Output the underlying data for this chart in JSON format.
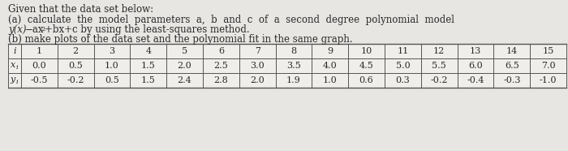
{
  "title_line1": "Given that the data set below:",
  "part_a_text": "(a)  calculate  the  model  parameters  a,  b  and  c  of  a  second  degree  polynomial  model",
  "part_a2_prefix": "y(x)=ax",
  "part_a2_suffix": "+bx+c by using the least-squares method.",
  "part_b": "(b) make plots of the data set and the polynomial fit in the same graph.",
  "row_i": [
    1,
    2,
    3,
    4,
    5,
    6,
    7,
    8,
    9,
    10,
    11,
    12,
    13,
    14,
    15
  ],
  "row_xi": [
    "0.0",
    "0.5",
    "1.0",
    "1.5",
    "2.0",
    "2.5",
    "3.0",
    "3.5",
    "4.0",
    "4.5",
    "5.0",
    "5.5",
    "6.0",
    "6.5",
    "7.0"
  ],
  "row_yi": [
    "-0.5",
    "-0.2",
    "0.5",
    "1.5",
    "2.4",
    "2.8",
    "2.0",
    "1.9",
    "1.0",
    "0.6",
    "0.3",
    "-0.2",
    "-0.4",
    "-0.3",
    "-1.0"
  ],
  "text_color": "#2a2a2a",
  "font_size_body": 8.5,
  "font_size_table": 8.0,
  "bg_color": "#e8e6e0"
}
